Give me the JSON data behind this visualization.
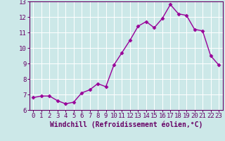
{
  "x": [
    0,
    1,
    2,
    3,
    4,
    5,
    6,
    7,
    8,
    9,
    10,
    11,
    12,
    13,
    14,
    15,
    16,
    17,
    18,
    19,
    20,
    21,
    22,
    23
  ],
  "y": [
    6.8,
    6.9,
    6.9,
    6.6,
    6.4,
    6.5,
    7.1,
    7.3,
    7.7,
    7.5,
    8.9,
    9.7,
    10.5,
    11.4,
    11.7,
    11.3,
    11.9,
    12.8,
    12.2,
    12.1,
    11.2,
    11.1,
    9.5,
    8.9
  ],
  "line_color": "#990099",
  "marker": "D",
  "markersize": 2.5,
  "linewidth": 1.0,
  "bg_color": "#cce8e8",
  "grid_color": "#ffffff",
  "xlabel": "Windchill (Refroidissement éolien,°C)",
  "ylim": [
    6,
    13
  ],
  "xlim": [
    -0.5,
    23.5
  ],
  "yticks": [
    6,
    7,
    8,
    9,
    10,
    11,
    12,
    13
  ],
  "xticks": [
    0,
    1,
    2,
    3,
    4,
    5,
    6,
    7,
    8,
    9,
    10,
    11,
    12,
    13,
    14,
    15,
    16,
    17,
    18,
    19,
    20,
    21,
    22,
    23
  ],
  "tick_fontsize": 6.5,
  "xlabel_fontsize": 7.0,
  "spine_color": "#660066"
}
